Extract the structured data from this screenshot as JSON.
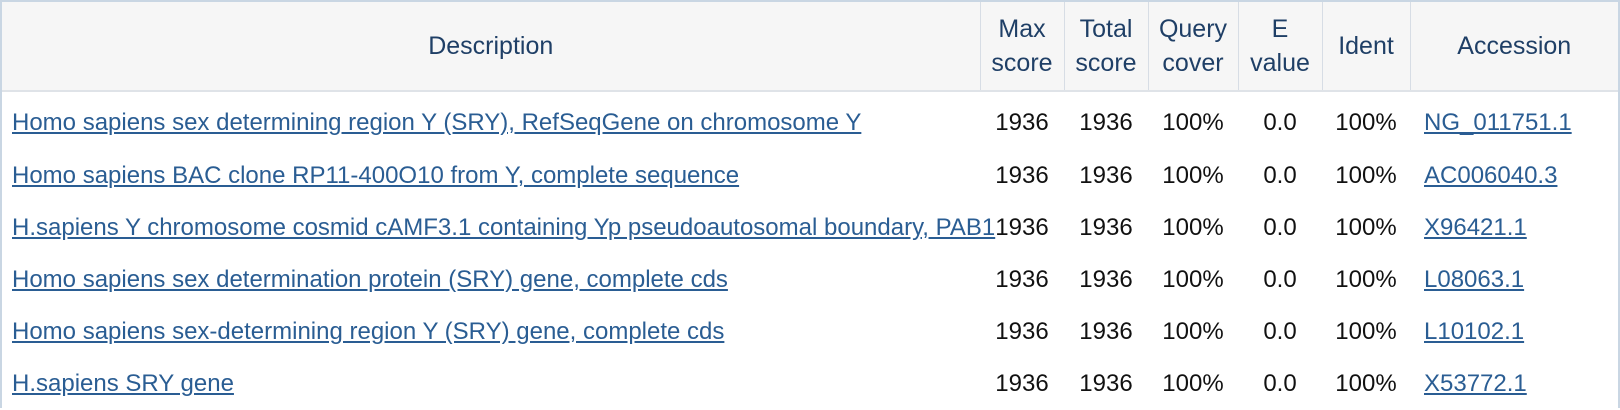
{
  "headers": {
    "description": "Description",
    "max_score": [
      "Max",
      "score"
    ],
    "total_score": [
      "Total",
      "score"
    ],
    "query_cover": [
      "Query",
      "cover"
    ],
    "e_value": [
      "E",
      "value"
    ],
    "ident": "Ident",
    "accession": "Accession"
  },
  "rows": [
    {
      "description": "Homo sapiens sex determining region Y (SRY), RefSeqGene on chromosome Y",
      "max_score": "1936",
      "total_score": "1936",
      "query_cover": "100%",
      "e_value": "0.0",
      "ident": "100%",
      "accession": "NG_011751.1"
    },
    {
      "description": "Homo sapiens BAC clone RP11-400O10 from Y, complete sequence",
      "max_score": "1936",
      "total_score": "1936",
      "query_cover": "100%",
      "e_value": "0.0",
      "ident": "100%",
      "accession": "AC006040.3"
    },
    {
      "description": "H.sapiens Y chromosome cosmid cAMF3.1 containing Yp pseudoautosomal boundary, PAB1",
      "max_score": "1936",
      "total_score": "1936",
      "query_cover": "100%",
      "e_value": "0.0",
      "ident": "100%",
      "accession": "X96421.1"
    },
    {
      "description": "Homo sapiens sex determination protein (SRY) gene, complete cds",
      "max_score": "1936",
      "total_score": "1936",
      "query_cover": "100%",
      "e_value": "0.0",
      "ident": "100%",
      "accession": "L08063.1"
    },
    {
      "description": "Homo sapiens sex-determining region Y (SRY) gene, complete cds",
      "max_score": "1936",
      "total_score": "1936",
      "query_cover": "100%",
      "e_value": "0.0",
      "ident": "100%",
      "accession": "L10102.1"
    },
    {
      "description": "H.sapiens SRY gene",
      "max_score": "1936",
      "total_score": "1936",
      "query_cover": "100%",
      "e_value": "0.0",
      "ident": "100%",
      "accession": "X53772.1"
    }
  ],
  "colors": {
    "link": "#2a5d93",
    "header_text": "#1f3f66",
    "header_bg": "#f6f6f6",
    "border": "#c9d6e3"
  }
}
